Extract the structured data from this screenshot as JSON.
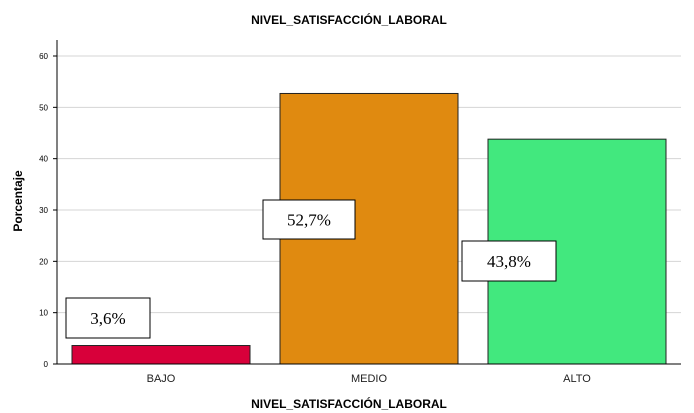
{
  "chart_data": {
    "type": "bar",
    "title": "NIVEL_SATISFACCIÓN_LABORAL",
    "xlabel": "NIVEL_SATISFACCIÓN_LABORAL",
    "ylabel": "Porcentaje",
    "ylim": [
      0,
      60
    ],
    "yticks": [
      "0",
      "10",
      "20",
      "30",
      "40",
      "50",
      "60"
    ],
    "grid": true,
    "categories": [
      "BAJO",
      "MEDIO",
      "ALTO"
    ],
    "values": [
      3.6,
      52.7,
      43.8
    ],
    "data_labels": [
      "3,6%",
      "52,7%",
      "43,8%"
    ],
    "colors": [
      "#d8003a",
      "#e08a10",
      "#42e87e"
    ]
  }
}
